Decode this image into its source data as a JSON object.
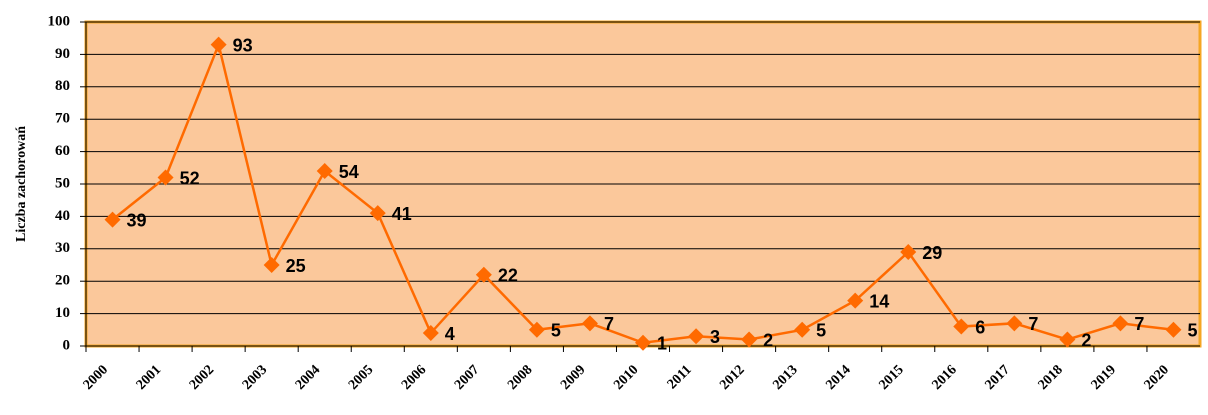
{
  "chart_data": {
    "type": "line",
    "y_label": "Liczba zachorowań",
    "categories": [
      "2000",
      "2001",
      "2002",
      "2003",
      "2004",
      "2005",
      "2006",
      "2007",
      "2008",
      "2009",
      "2010",
      "2011",
      "2012",
      "2013",
      "2014",
      "2015",
      "2016",
      "2017",
      "2018",
      "2019",
      "2020"
    ],
    "series": [
      {
        "name": "Liczba zachorowań",
        "color": "#ff6a00",
        "values": [
          39,
          52,
          93,
          25,
          54,
          41,
          4,
          22,
          5,
          7,
          1,
          3,
          2,
          5,
          14,
          29,
          6,
          7,
          2,
          7,
          5
        ]
      }
    ],
    "ylim": [
      0,
      100
    ],
    "yticks": [
      0,
      10,
      20,
      30,
      40,
      50,
      60,
      70,
      80,
      90,
      100
    ],
    "grid": true
  }
}
